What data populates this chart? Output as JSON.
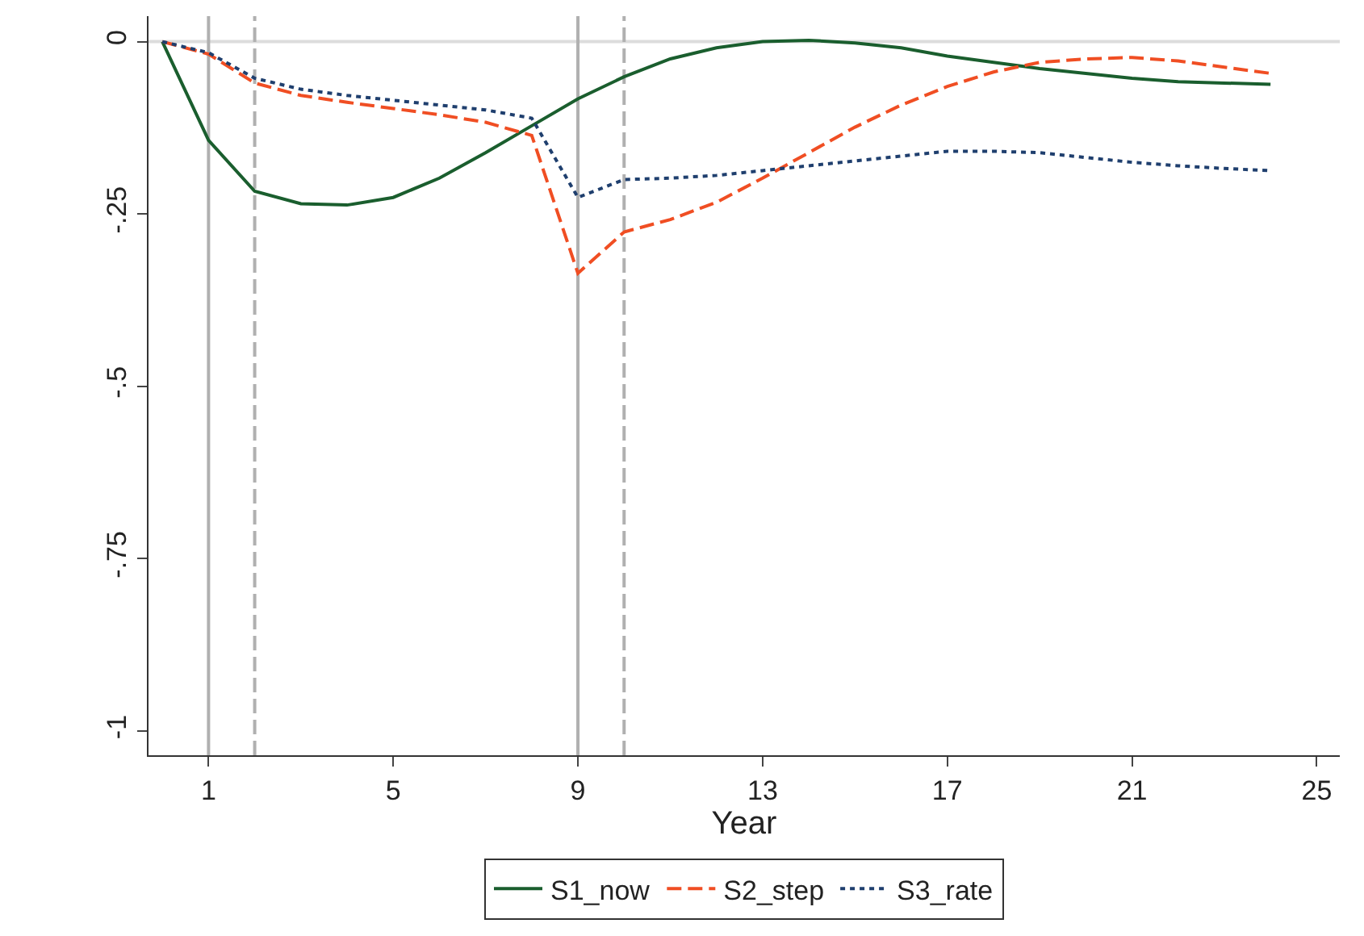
{
  "chart_data": {
    "type": "line",
    "xlabel": "Year",
    "x": [
      0,
      1,
      2,
      3,
      4,
      5,
      6,
      7,
      8,
      9,
      10,
      11,
      12,
      13,
      14,
      15,
      16,
      17,
      18,
      19,
      20,
      21,
      22,
      23,
      24
    ],
    "series": [
      {
        "name": "S1_now",
        "color": "#1a5e2e",
        "line_style": "solid",
        "values": [
          0,
          -0.143,
          -0.217,
          -0.235,
          -0.237,
          -0.226,
          -0.198,
          -0.161,
          -0.122,
          -0.083,
          -0.051,
          -0.025,
          -0.009,
          0,
          0.002,
          -0.002,
          -0.009,
          -0.021,
          -0.03,
          -0.039,
          -0.046,
          -0.053,
          -0.058,
          -0.06,
          -0.062
        ]
      },
      {
        "name": "S2_step",
        "color": "#f04e23",
        "line_style": "dashed",
        "values": [
          0,
          -0.018,
          -0.06,
          -0.078,
          -0.088,
          -0.097,
          -0.106,
          -0.117,
          -0.136,
          -0.336,
          -0.276,
          -0.258,
          -0.233,
          -0.198,
          -0.161,
          -0.124,
          -0.092,
          -0.065,
          -0.044,
          -0.03,
          -0.025,
          -0.023,
          -0.028,
          -0.037,
          -0.046
        ]
      },
      {
        "name": "S3_rate",
        "color": "#1f3f6e",
        "line_style": "dotted",
        "values": [
          0,
          -0.016,
          -0.053,
          -0.069,
          -0.078,
          -0.085,
          -0.092,
          -0.099,
          -0.111,
          -0.226,
          -0.2,
          -0.198,
          -0.194,
          -0.187,
          -0.18,
          -0.173,
          -0.166,
          -0.159,
          -0.159,
          -0.161,
          -0.168,
          -0.175,
          -0.18,
          -0.184,
          -0.187
        ]
      }
    ],
    "xlim": [
      -0.3,
      25.5
    ],
    "xticks": [
      1,
      5,
      9,
      13,
      17,
      21,
      25
    ],
    "ylim": [
      -1.035,
      0.037
    ],
    "yticks": [
      0,
      {
        "value": -0.25,
        "label": "-.25"
      },
      {
        "value": -0.5,
        "label": "-.5"
      },
      {
        "value": -0.75,
        "label": "-.75"
      },
      -1
    ],
    "ref_lines": [
      {
        "axis": "y",
        "value": 0,
        "color": "#dcdcdc",
        "line_style": "solid"
      },
      {
        "axis": "x",
        "value": 1,
        "color": "#b0b0b0",
        "line_style": "solid"
      },
      {
        "axis": "x",
        "value": 2,
        "color": "#b0b0b0",
        "line_style": "dashed"
      },
      {
        "axis": "x",
        "value": 9,
        "color": "#b0b0b0",
        "line_style": "solid"
      },
      {
        "axis": "x",
        "value": 10,
        "color": "#b0b0b0",
        "line_style": "dashed"
      }
    ],
    "grid": false,
    "legend": "bottom",
    "marker": "none"
  }
}
